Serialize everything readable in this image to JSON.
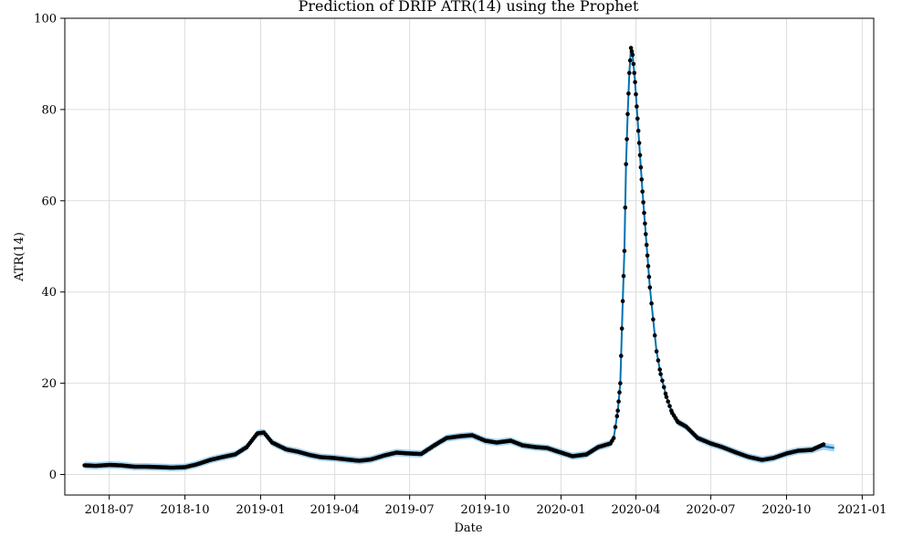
{
  "chart_data": {
    "type": "line",
    "title": "Prediction of DRIP  ATR(14) using the Prophet",
    "xlabel": "Date",
    "ylabel": "ATR(14)",
    "grid": true,
    "xlim": [
      "2018-05-08",
      "2021-01-15"
    ],
    "ylim": [
      -4.5,
      100
    ],
    "x_ticks": [
      "2018-07",
      "2018-10",
      "2019-01",
      "2019-04",
      "2019-07",
      "2019-10",
      "2020-01",
      "2020-04",
      "2020-07",
      "2020-10",
      "2021-01"
    ],
    "y_ticks": [
      0,
      20,
      40,
      60,
      80,
      100
    ],
    "colors": {
      "forecast": "#0072B2",
      "uncertainty": "#5DADE2",
      "observed": "#000000",
      "grid": "#dddddd"
    },
    "series": [
      {
        "kind": "forecast",
        "points": [
          [
            "2018-06-01",
            2.0
          ],
          [
            "2018-06-15",
            1.9
          ],
          [
            "2018-07-01",
            2.1
          ],
          [
            "2018-07-15",
            2.0
          ],
          [
            "2018-08-01",
            1.7
          ],
          [
            "2018-08-15",
            1.7
          ],
          [
            "2018-09-01",
            1.6
          ],
          [
            "2018-09-15",
            1.5
          ],
          [
            "2018-10-01",
            1.6
          ],
          [
            "2018-10-15",
            2.2
          ],
          [
            "2018-11-01",
            3.2
          ],
          [
            "2018-11-15",
            3.8
          ],
          [
            "2018-12-01",
            4.4
          ],
          [
            "2018-12-15",
            6.0
          ],
          [
            "2018-12-28",
            9.0
          ],
          [
            "2019-01-05",
            9.2
          ],
          [
            "2019-01-15",
            7.0
          ],
          [
            "2019-02-01",
            5.5
          ],
          [
            "2019-02-15",
            5.0
          ],
          [
            "2019-03-01",
            4.3
          ],
          [
            "2019-03-15",
            3.8
          ],
          [
            "2019-04-01",
            3.6
          ],
          [
            "2019-04-15",
            3.3
          ],
          [
            "2019-05-01",
            3.0
          ],
          [
            "2019-05-15",
            3.3
          ],
          [
            "2019-06-01",
            4.2
          ],
          [
            "2019-06-15",
            4.8
          ],
          [
            "2019-07-01",
            4.6
          ],
          [
            "2019-07-15",
            4.5
          ],
          [
            "2019-08-01",
            6.5
          ],
          [
            "2019-08-15",
            8.0
          ],
          [
            "2019-09-01",
            8.4
          ],
          [
            "2019-09-15",
            8.6
          ],
          [
            "2019-10-01",
            7.4
          ],
          [
            "2019-10-15",
            7.0
          ],
          [
            "2019-11-01",
            7.4
          ],
          [
            "2019-11-15",
            6.4
          ],
          [
            "2019-12-01",
            6.0
          ],
          [
            "2019-12-15",
            5.8
          ],
          [
            "2020-01-01",
            4.8
          ],
          [
            "2020-01-15",
            4.0
          ],
          [
            "2020-02-01",
            4.4
          ],
          [
            "2020-02-15",
            6.0
          ],
          [
            "2020-03-01",
            6.8
          ],
          [
            "2020-03-05",
            8.0
          ],
          [
            "2020-03-10",
            14.0
          ],
          [
            "2020-03-13",
            20.0
          ],
          [
            "2020-03-16",
            38.0
          ],
          [
            "2020-03-18",
            49.0
          ],
          [
            "2020-03-20",
            68.0
          ],
          [
            "2020-03-22",
            79.0
          ],
          [
            "2020-03-24",
            88.0
          ],
          [
            "2020-03-26",
            93.5
          ],
          [
            "2020-03-28",
            92.0
          ],
          [
            "2020-03-31",
            86.0
          ],
          [
            "2020-04-03",
            78.0
          ],
          [
            "2020-04-06",
            70.0
          ],
          [
            "2020-04-09",
            62.0
          ],
          [
            "2020-04-12",
            55.0
          ],
          [
            "2020-04-15",
            48.0
          ],
          [
            "2020-04-18",
            41.0
          ],
          [
            "2020-04-22",
            34.0
          ],
          [
            "2020-04-26",
            27.0
          ],
          [
            "2020-05-01",
            22.0
          ],
          [
            "2020-05-08",
            17.0
          ],
          [
            "2020-05-15",
            13.5
          ],
          [
            "2020-05-22",
            11.5
          ],
          [
            "2020-06-01",
            10.5
          ],
          [
            "2020-06-15",
            8.0
          ],
          [
            "2020-07-01",
            6.8
          ],
          [
            "2020-07-15",
            6.0
          ],
          [
            "2020-08-01",
            4.8
          ],
          [
            "2020-08-15",
            3.9
          ],
          [
            "2020-09-01",
            3.2
          ],
          [
            "2020-09-15",
            3.6
          ],
          [
            "2020-10-01",
            4.6
          ],
          [
            "2020-10-15",
            5.2
          ],
          [
            "2020-11-01",
            5.4
          ],
          [
            "2020-11-15",
            6.2
          ],
          [
            "2020-11-28",
            5.8
          ]
        ]
      },
      {
        "kind": "observed",
        "points": [
          [
            "2018-06-01",
            2.0
          ],
          [
            "2018-06-15",
            1.9
          ],
          [
            "2018-07-01",
            2.1
          ],
          [
            "2018-07-15",
            2.0
          ],
          [
            "2018-08-01",
            1.7
          ],
          [
            "2018-08-15",
            1.7
          ],
          [
            "2018-09-01",
            1.6
          ],
          [
            "2018-09-15",
            1.5
          ],
          [
            "2018-10-01",
            1.6
          ],
          [
            "2018-10-15",
            2.2
          ],
          [
            "2018-11-01",
            3.2
          ],
          [
            "2018-11-15",
            3.8
          ],
          [
            "2018-12-01",
            4.4
          ],
          [
            "2018-12-15",
            6.0
          ],
          [
            "2018-12-28",
            9.0
          ],
          [
            "2019-01-05",
            9.2
          ],
          [
            "2019-01-15",
            7.0
          ],
          [
            "2019-02-01",
            5.5
          ],
          [
            "2019-02-15",
            5.0
          ],
          [
            "2019-03-01",
            4.3
          ],
          [
            "2019-03-15",
            3.8
          ],
          [
            "2019-04-01",
            3.6
          ],
          [
            "2019-04-15",
            3.3
          ],
          [
            "2019-05-01",
            3.0
          ],
          [
            "2019-05-15",
            3.3
          ],
          [
            "2019-06-01",
            4.2
          ],
          [
            "2019-06-15",
            4.8
          ],
          [
            "2019-07-01",
            4.6
          ],
          [
            "2019-07-15",
            4.5
          ],
          [
            "2019-08-01",
            6.5
          ],
          [
            "2019-08-15",
            8.0
          ],
          [
            "2019-09-01",
            8.4
          ],
          [
            "2019-09-15",
            8.6
          ],
          [
            "2019-10-01",
            7.4
          ],
          [
            "2019-10-15",
            7.0
          ],
          [
            "2019-11-01",
            7.4
          ],
          [
            "2019-11-15",
            6.4
          ],
          [
            "2019-12-01",
            6.0
          ],
          [
            "2019-12-15",
            5.8
          ],
          [
            "2020-01-01",
            4.8
          ],
          [
            "2020-01-15",
            4.0
          ],
          [
            "2020-02-01",
            4.4
          ],
          [
            "2020-02-15",
            6.0
          ],
          [
            "2020-03-01",
            6.8
          ],
          [
            "2020-03-05",
            8.0
          ],
          [
            "2020-03-10",
            14.0
          ],
          [
            "2020-03-13",
            20.0
          ],
          [
            "2020-03-16",
            38.0
          ],
          [
            "2020-03-18",
            49.0
          ],
          [
            "2020-03-20",
            68.0
          ],
          [
            "2020-03-22",
            79.0
          ],
          [
            "2020-03-24",
            88.0
          ],
          [
            "2020-03-26",
            93.5
          ],
          [
            "2020-03-28",
            92.0
          ],
          [
            "2020-03-31",
            86.0
          ],
          [
            "2020-04-03",
            78.0
          ],
          [
            "2020-04-06",
            70.0
          ],
          [
            "2020-04-09",
            62.0
          ],
          [
            "2020-04-12",
            55.0
          ],
          [
            "2020-04-15",
            48.0
          ],
          [
            "2020-04-18",
            41.0
          ],
          [
            "2020-04-22",
            34.0
          ],
          [
            "2020-04-26",
            27.0
          ],
          [
            "2020-05-01",
            22.0
          ],
          [
            "2020-05-08",
            17.0
          ],
          [
            "2020-05-15",
            13.5
          ],
          [
            "2020-05-22",
            11.5
          ],
          [
            "2020-06-01",
            10.5
          ],
          [
            "2020-06-15",
            8.0
          ],
          [
            "2020-07-01",
            6.8
          ],
          [
            "2020-07-15",
            6.0
          ],
          [
            "2020-08-01",
            4.8
          ],
          [
            "2020-08-15",
            3.9
          ],
          [
            "2020-09-01",
            3.2
          ],
          [
            "2020-09-15",
            3.6
          ],
          [
            "2020-10-01",
            4.6
          ],
          [
            "2020-10-15",
            5.2
          ],
          [
            "2020-11-01",
            5.4
          ],
          [
            "2020-11-15",
            6.6
          ]
        ]
      }
    ]
  }
}
